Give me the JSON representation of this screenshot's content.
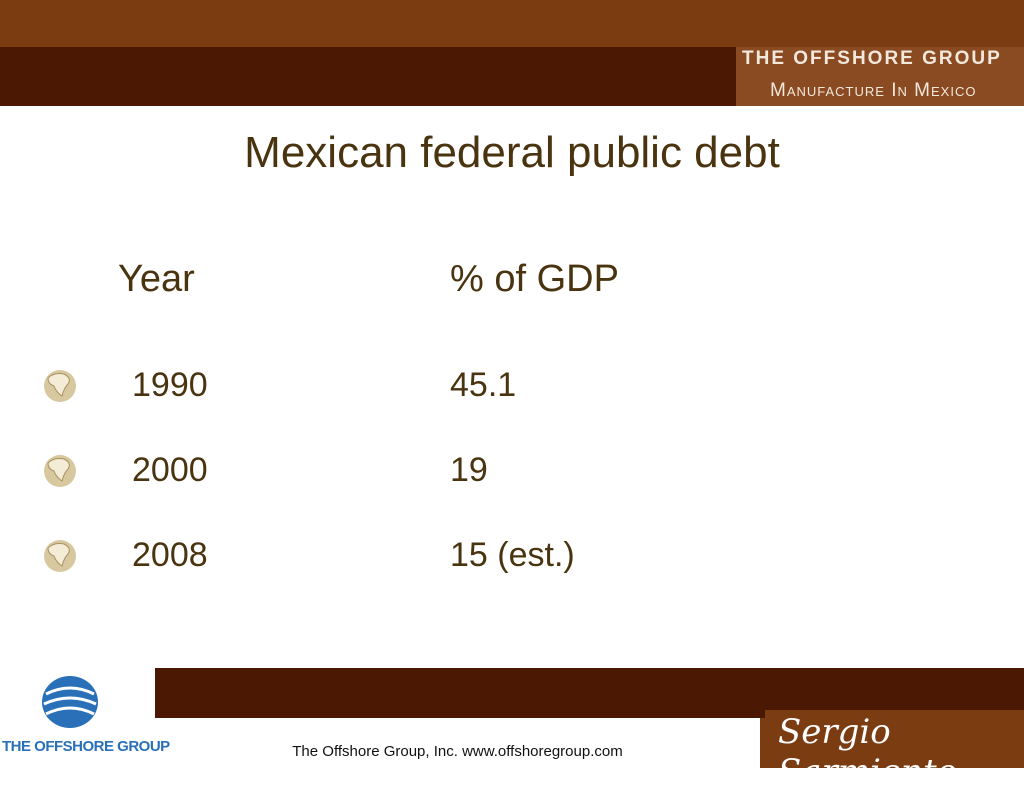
{
  "header": {
    "brand": "THE OFFSHORE GROUP",
    "tagline": "Manufacture In Mexico"
  },
  "title": "Mexican federal public debt",
  "table": {
    "columns": [
      "Year",
      "% of GDP"
    ],
    "rows": [
      [
        "1990",
        "45.1"
      ],
      [
        "2000",
        "19"
      ],
      [
        "2008",
        "15 (est.)"
      ]
    ]
  },
  "footer": {
    "logo_text": "THE OFFSHORE GROUP",
    "text": "The Offshore Group, Inc. www.offshoregroup.com",
    "signature": "Sergio Sarmiento"
  }
}
